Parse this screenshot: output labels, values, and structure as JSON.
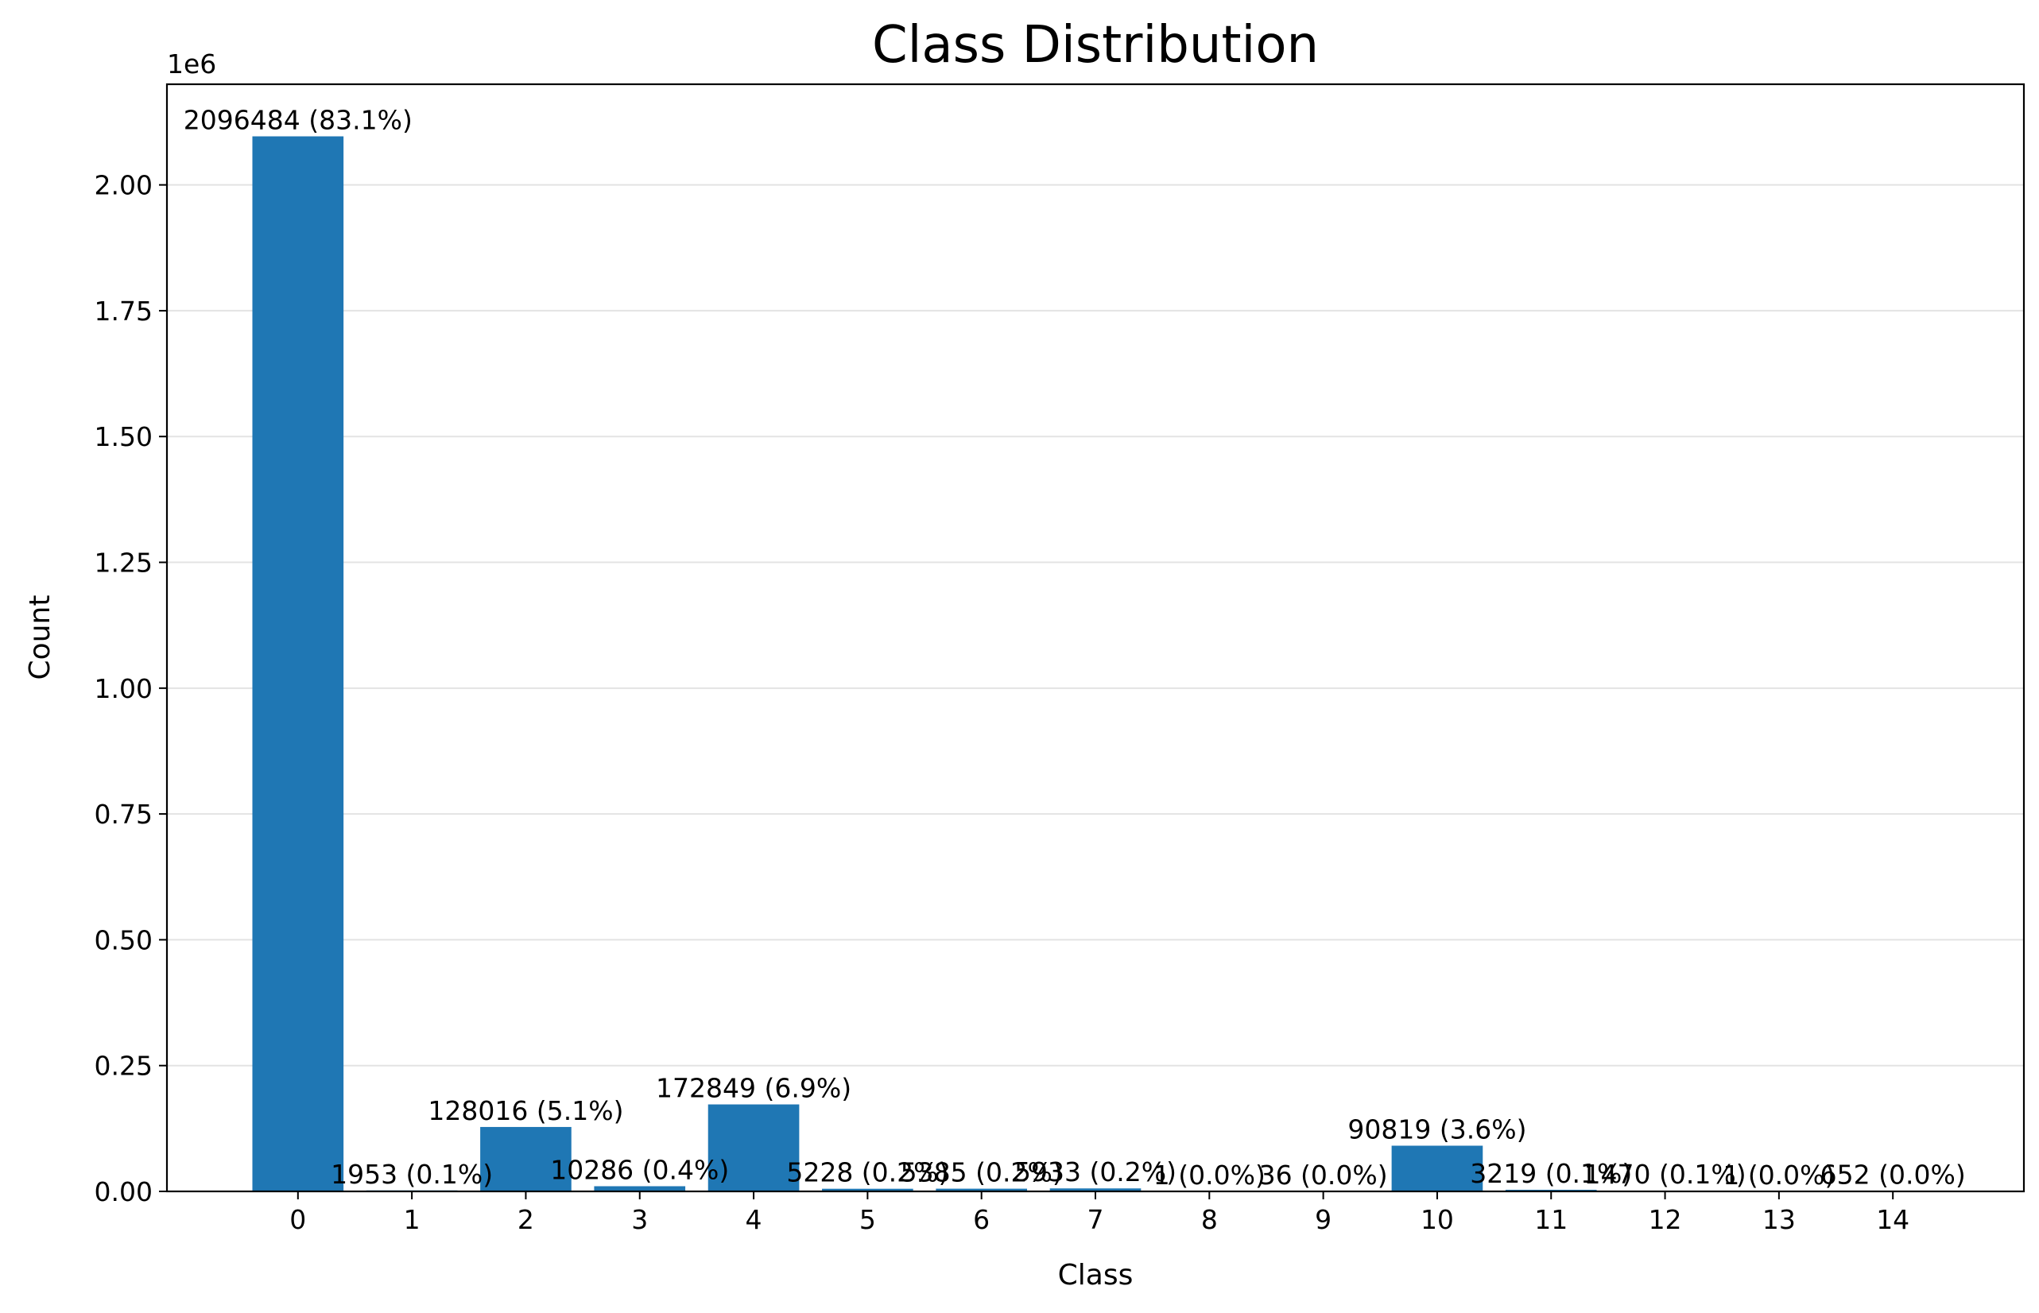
{
  "chart_data": {
    "type": "bar",
    "title": "Class Distribution",
    "xlabel": "Class",
    "ylabel": "Count",
    "y_offset_text": "1e6",
    "y_scale": 1000000,
    "ylim": [
      0,
      2200000
    ],
    "grid": "y",
    "bar_color": "#1f77b4",
    "categories": [
      "0",
      "1",
      "2",
      "3",
      "4",
      "5",
      "6",
      "7",
      "8",
      "9",
      "10",
      "11",
      "12",
      "13",
      "14"
    ],
    "values": [
      2096484,
      1953,
      128016,
      10286,
      172849,
      5228,
      5385,
      5933,
      1,
      36,
      90819,
      3219,
      1470,
      1,
      652
    ],
    "bar_labels": [
      "2096484 (83.1%)",
      "1953 (0.1%)",
      "128016 (5.1%)",
      "10286 (0.4%)",
      "172849 (6.9%)",
      "5228 (0.2%)",
      "5385 (0.2%)",
      "5933 (0.2%)",
      "1 (0.0%)",
      "36 (0.0%)",
      "90819 (3.6%)",
      "3219 (0.1%)",
      "1470 (0.1%)",
      "1 (0.0%)",
      "652 (0.0%)"
    ],
    "y_ticks": [
      0,
      250000,
      500000,
      750000,
      1000000,
      1250000,
      1500000,
      1750000,
      2000000
    ],
    "y_tick_labels": [
      "0.00",
      "0.25",
      "0.50",
      "0.75",
      "1.00",
      "1.25",
      "1.50",
      "1.75",
      "2.00"
    ]
  }
}
